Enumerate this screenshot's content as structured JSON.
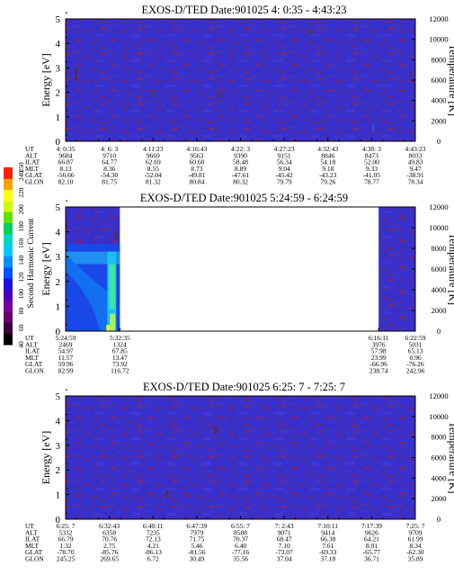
{
  "chart_data": [
    {
      "type": "heatmap",
      "title": "EXOS-D/TED   Date:901025  4: 0:35 - 4:43:23",
      "ylabel": "Energy [eV]",
      "y2label": "Temperature [K]",
      "ylim": [
        0,
        5
      ],
      "y2lim": [
        0,
        12000
      ],
      "yticks": [
        "0",
        "1",
        "2",
        "3",
        "4",
        "5"
      ],
      "y2ticks": [
        "0",
        "2000",
        "4000",
        "6000",
        "8000",
        "10000",
        "12000"
      ],
      "grid": false,
      "data_coverage": [
        [
          0,
          1
        ]
      ],
      "row_labels": [
        "UT",
        "ALT",
        "ILAT",
        "MLT",
        "GLAT",
        "GLON"
      ],
      "columns": [
        [
          "4: 0:35",
          "9684",
          "66.87",
          "8.13",
          "-56.66",
          "82.10"
        ],
        [
          "4: 6: 3",
          "9710",
          "64.77",
          "8.36",
          "-54.30",
          "81.75"
        ],
        [
          "4:11:23",
          "9669",
          "62.69",
          "8.55",
          "-52.04",
          "81.32"
        ],
        [
          "4:16:43",
          "9563",
          "60.60",
          "8.73",
          "-49.81",
          "80.84"
        ],
        [
          "4:22: 3",
          "9390",
          "58.48",
          "8.89",
          "-47.61",
          "80.32"
        ],
        [
          "4:27:23",
          "9151",
          "56.34",
          "9.04",
          "-45.42",
          "79.79"
        ],
        [
          "4:32:43",
          "8846",
          "54.18",
          "9.18",
          "-43.23",
          "79.26"
        ],
        [
          "4:38: 3",
          "8473",
          "52.00",
          "9.33",
          "-41.05",
          "78.77"
        ],
        [
          "4:43:23",
          "8033",
          "49.83",
          "9.47",
          "-38.91",
          "78.34"
        ]
      ],
      "features": [
        {
          "x": 0.03,
          "y": 3.0,
          "len": 0.5,
          "color": "#5a2a2a"
        },
        {
          "x": 0.25,
          "y": 2.05,
          "len": 0.25,
          "color": "#5a3a20"
        },
        {
          "x": 0.44,
          "y": 2.0,
          "len": 0.25,
          "color": "#5a3a20"
        },
        {
          "x": 0.7,
          "y": 4.6,
          "len": 0.25,
          "color": "#5a3a20"
        },
        {
          "x": 0.74,
          "y": 0.9,
          "len": 0.15,
          "color": "#3a3a90"
        },
        {
          "x": 0.88,
          "y": 0.7,
          "len": 0.35,
          "color": "#2a5ae0"
        },
        {
          "x": 0.985,
          "y": 2.8,
          "len": 0.2,
          "color": "#5a3a30"
        }
      ]
    },
    {
      "type": "heatmap",
      "title": "EXOS-D/TED   Date:901025  5:24:59 - 6:24:59",
      "ylabel": "Energy [eV]",
      "y2label": "Temperature [K]",
      "ylim": [
        0,
        5
      ],
      "y2lim": [
        0,
        12000
      ],
      "yticks": [
        "0",
        "1",
        "2",
        "3",
        "4",
        "5"
      ],
      "y2ticks": [
        "0",
        "2000",
        "4000",
        "6000",
        "8000",
        "10000",
        "12000"
      ],
      "grid": false,
      "data_coverage": [
        [
          0,
          0.155
        ],
        [
          0.895,
          1
        ]
      ],
      "row_labels": [
        "UT",
        "ALT",
        "ILAT",
        "MLT",
        "GLAT",
        "GLON"
      ],
      "column_positions": [
        0,
        0.155,
        0.895,
        1
      ],
      "columns": [
        [
          "5:24:59",
          "2469",
          "54.97",
          "11.57",
          "59.96",
          "82.99"
        ],
        [
          "5:32:35",
          "1324",
          "67.85",
          "13.47",
          "73.92",
          "116.72"
        ],
        [
          "6:16:11",
          "3976",
          "57.98",
          "23.99",
          "-66.96",
          "238.74"
        ],
        [
          "6:22:59",
          "5031",
          "65.13",
          "0.96",
          "-76.26",
          "242.96"
        ]
      ],
      "features": [
        {
          "x": 0.145,
          "y": 4.0,
          "len": 0.35,
          "color": "#5a3020"
        }
      ]
    },
    {
      "type": "heatmap",
      "title": "EXOS-D/TED   Date:901025  6:25: 7 - 7:25: 7",
      "ylabel": "Energy [eV]",
      "y2label": "Temperature [K]",
      "ylim": [
        0,
        5
      ],
      "y2lim": [
        0,
        12000
      ],
      "yticks": [
        "0",
        "1",
        "2",
        "3",
        "4",
        "5"
      ],
      "y2ticks": [
        "0",
        "2000",
        "4000",
        "6000",
        "8000",
        "10000",
        "12000"
      ],
      "grid": false,
      "data_coverage": [
        [
          0,
          1
        ]
      ],
      "row_labels": [
        "UT",
        "ALT",
        "ILAT",
        "MLT",
        "GLAT",
        "GLON"
      ],
      "columns": [
        [
          "6:25: 7",
          "5332",
          "66.79",
          "1.32",
          "-78.70",
          "245.25"
        ],
        [
          "6:32:43",
          "6358",
          "70.76",
          "2.75",
          "-85.76",
          "269.65"
        ],
        [
          "6:40:11",
          "7235",
          "72.13",
          "4.21",
          "-86.13",
          "6.72"
        ],
        [
          "6:47:39",
          "7979",
          "71.75",
          "5.46",
          "-81.56",
          "30.49"
        ],
        [
          "6:55: 7",
          "8588",
          "70.37",
          "6.40",
          "-77.16",
          "35.56"
        ],
        [
          "7: 2:43",
          "9071",
          "68.47",
          "7.10",
          "-73.07",
          "37.04"
        ],
        [
          "7:10:11",
          "9414",
          "66.38",
          "7.61",
          "-69.33",
          "37.18"
        ],
        [
          "7:17:39",
          "9626",
          "64.21",
          "8.01",
          "-65.77",
          "36.71"
        ],
        [
          "7:25: 7",
          "9709",
          "61.99",
          "8.34",
          "-62.30",
          "35.89"
        ]
      ],
      "features": [
        {
          "x": 0.43,
          "y": 3.75,
          "len": 0.3,
          "color": "#5a3020"
        },
        {
          "x": 0.29,
          "y": 1.2,
          "len": 0.3,
          "color": "#5a3020"
        }
      ]
    }
  ],
  "colorbar": {
    "label": "Second Harmonic Current",
    "range": [
      40,
      250
    ],
    "ticks": [
      "40",
      "60",
      "80",
      "100",
      "120",
      "140",
      "160",
      "180",
      "200",
      "220",
      "240",
      "250"
    ],
    "colors": [
      "#000000",
      "#3a003a",
      "#6a006a",
      "#7a00a0",
      "#4a00c0",
      "#1a10e0",
      "#0050ff",
      "#0090ff",
      "#00c8ff",
      "#00d8c0",
      "#00d060",
      "#60e000",
      "#c8ff00",
      "#ffff00",
      "#ffa000",
      "#ff2000"
    ]
  }
}
